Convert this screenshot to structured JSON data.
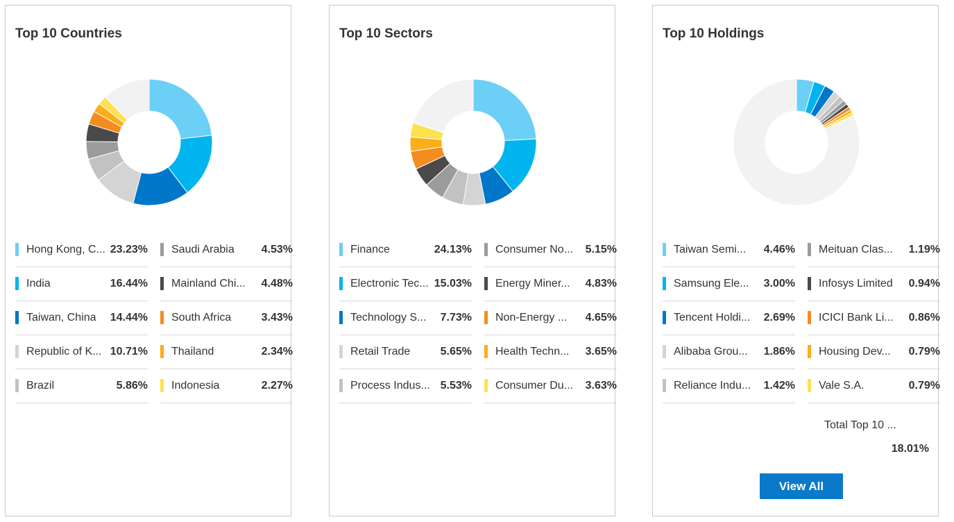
{
  "chart_data": [
    {
      "type": "pie",
      "title": "Top 10 Countries",
      "categories": [
        "Hong Kong, C...",
        "India",
        "Taiwan, China",
        "Republic of K...",
        "Brazil",
        "Saudi Arabia",
        "Mainland Chi...",
        "South Africa",
        "Thailand",
        "Indonesia"
      ],
      "labels": [
        "23.23%",
        "16.44%",
        "14.44%",
        "10.71%",
        "5.86%",
        "4.53%",
        "4.48%",
        "3.43%",
        "2.34%",
        "2.27%"
      ],
      "values": [
        23.23,
        16.44,
        14.44,
        10.71,
        5.86,
        4.53,
        4.48,
        3.43,
        2.34,
        2.27
      ],
      "colors": [
        "#6ccff6",
        "#00b5ef",
        "#0077c8",
        "#d4d4d4",
        "#c2c2c2",
        "#9b9b9b",
        "#4a4a4a",
        "#f58c1f",
        "#fbae17",
        "#fde24f"
      ],
      "remainder_color": "#f2f2f2"
    },
    {
      "type": "pie",
      "title": "Top 10 Sectors",
      "categories": [
        "Finance",
        "Electronic Tec...",
        "Technology S...",
        "Retail Trade",
        "Process Indus...",
        "Consumer No...",
        "Energy Miner...",
        "Non-Energy ...",
        "Health Techn...",
        "Consumer Du..."
      ],
      "labels": [
        "24.13%",
        "15.03%",
        "7.73%",
        "5.65%",
        "5.53%",
        "5.15%",
        "4.83%",
        "4.65%",
        "3.65%",
        "3.63%"
      ],
      "values": [
        24.13,
        15.03,
        7.73,
        5.65,
        5.53,
        5.15,
        4.83,
        4.65,
        3.65,
        3.63
      ],
      "colors": [
        "#6ccff6",
        "#00b5ef",
        "#0077c8",
        "#d4d4d4",
        "#c2c2c2",
        "#9b9b9b",
        "#4a4a4a",
        "#f58c1f",
        "#fbae17",
        "#fde24f"
      ],
      "remainder_color": "#f2f2f2"
    },
    {
      "type": "pie",
      "title": "Top 10 Holdings",
      "categories": [
        "Taiwan Semi...",
        "Samsung Ele...",
        "Tencent Holdi...",
        "Alibaba Grou...",
        "Reliance Indu...",
        "Meituan Clas...",
        "Infosys Limited",
        "ICICI Bank Li...",
        "Housing Dev...",
        "Vale S.A."
      ],
      "labels": [
        "4.46%",
        "3.00%",
        "2.69%",
        "1.86%",
        "1.42%",
        "1.19%",
        "0.94%",
        "0.86%",
        "0.79%",
        "0.79%"
      ],
      "values": [
        4.46,
        3.0,
        2.69,
        1.86,
        1.42,
        1.19,
        0.94,
        0.86,
        0.79,
        0.79
      ],
      "colors": [
        "#6ccff6",
        "#00b5ef",
        "#0077c8",
        "#d4d4d4",
        "#c2c2c2",
        "#9b9b9b",
        "#4a4a4a",
        "#f58c1f",
        "#fbae17",
        "#fde24f"
      ],
      "remainder_color": "#f2f2f2",
      "total_label": "Total Top 10 ...",
      "total_value": "18.01%",
      "button_label": "View All"
    }
  ]
}
